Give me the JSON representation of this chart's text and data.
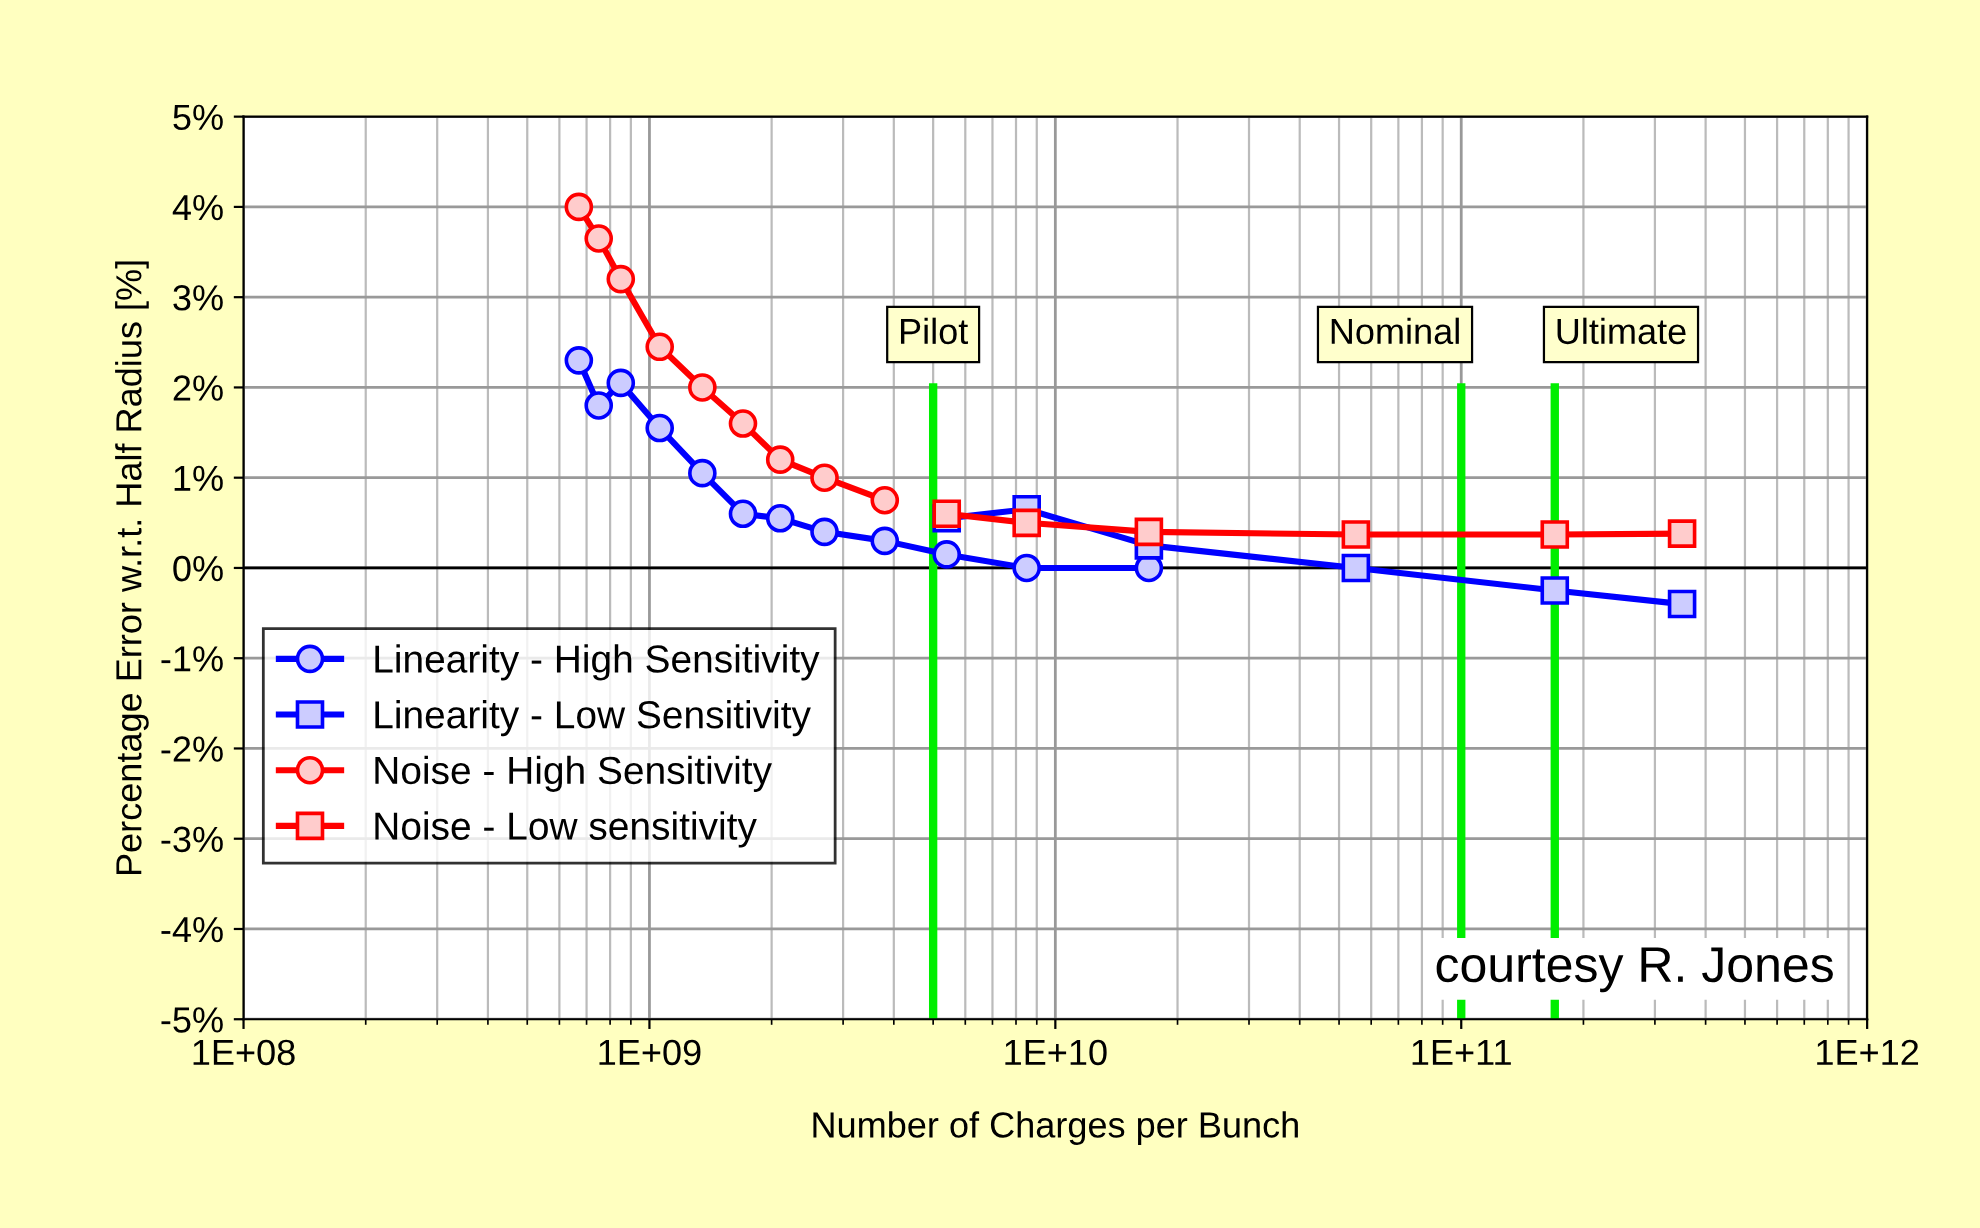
{
  "chart_data": {
    "type": "line",
    "xlabel": "Number of Charges per Bunch",
    "ylabel": "Percentage Error w.r.t. Half Radius [%]",
    "log": "x",
    "grid": true,
    "legend": "bottom left",
    "line_style": "solid",
    "xlim": [
      100000000.0,
      1000000000000.0
    ],
    "xticks": [
      {
        "value": 100000000.0,
        "label": "1E+08"
      },
      {
        "value": 1000000000.0,
        "label": "1E+09"
      },
      {
        "value": 10000000000.0,
        "label": "1E+10"
      },
      {
        "value": 100000000000.0,
        "label": "1E+11"
      },
      {
        "value": 1000000000000.0,
        "label": "1E+12"
      }
    ],
    "ylim": [
      -5,
      5
    ],
    "yticks": [
      {
        "value": -5,
        "label": "-5%"
      },
      {
        "value": -4,
        "label": "-4%"
      },
      {
        "value": -3,
        "label": "-3%"
      },
      {
        "value": -2,
        "label": "-2%"
      },
      {
        "value": -1,
        "label": "-1%"
      },
      {
        "value": 0,
        "label": "0%"
      },
      {
        "value": 1,
        "label": "1%"
      },
      {
        "value": 2,
        "label": "2%"
      },
      {
        "value": 3,
        "label": "3%"
      },
      {
        "value": 4,
        "label": "4%"
      },
      {
        "value": 5,
        "label": "5%"
      }
    ],
    "series": [
      {
        "name": "Linearity - High Sensitivity",
        "color": "#0000ff",
        "marker": "circle",
        "x": [
          670000000.0,
          750000000.0,
          850000000.0,
          1060000000.0,
          1350000000.0,
          1700000000.0,
          2100000000.0,
          2700000000.0,
          3800000000.0,
          5400000000.0,
          8500000000.0,
          17000000000.0
        ],
        "values": [
          2.3,
          1.8,
          2.05,
          1.55,
          1.05,
          0.6,
          0.55,
          0.4,
          0.3,
          0.15,
          0.0,
          0.0
        ]
      },
      {
        "name": "Linearity - Low Sensitivity",
        "color": "#0000ff",
        "marker": "square",
        "x": [
          5400000000.0,
          8500000000.0,
          17000000000.0,
          55000000000.0,
          170000000000.0,
          350000000000.0
        ],
        "values": [
          0.55,
          0.65,
          0.25,
          0.0,
          -0.25,
          -0.4
        ]
      },
      {
        "name": "Noise - High Sensitivity",
        "color": "#ff0000",
        "marker": "circle",
        "x": [
          670000000.0,
          750000000.0,
          850000000.0,
          1060000000.0,
          1350000000.0,
          1700000000.0,
          2100000000.0,
          2700000000.0,
          3800000000.0
        ],
        "values": [
          4.0,
          3.65,
          3.2,
          2.45,
          2.0,
          1.6,
          1.2,
          1.0,
          0.75
        ]
      },
      {
        "name": "Noise - Low sensitivity",
        "color": "#ff0000",
        "marker": "square",
        "x": [
          5400000000.0,
          8500000000.0,
          17000000000.0,
          55000000000.0,
          170000000000.0,
          350000000000.0
        ],
        "values": [
          0.6,
          0.5,
          0.4,
          0.37,
          0.37,
          0.38
        ]
      }
    ],
    "ref_lines": [
      {
        "axis": "x",
        "value": 5000000000.0,
        "label": "Pilot",
        "color": "#00ee00"
      },
      {
        "axis": "x",
        "value": 100000000000.0,
        "label": "Nominal",
        "color": "#00ee00"
      },
      {
        "axis": "x",
        "value": 170000000000.0,
        "label": "Ultimate",
        "color": "#00ee00"
      }
    ],
    "annotations": [
      "courtesy R. Jones"
    ]
  }
}
